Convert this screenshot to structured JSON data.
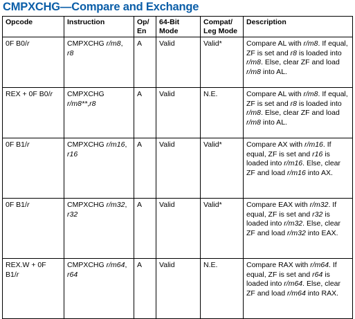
{
  "title": "CMPXCHG—Compare and Exchange",
  "headers": {
    "opcode": "Opcode",
    "instruction": "Instruction",
    "op_en_1": "Op/",
    "op_en_2": "En",
    "mode64_1": "64-Bit",
    "mode64_2": "Mode",
    "compat_1": "Compat/",
    "compat_2": "Leg Mode",
    "description": "Description"
  },
  "rows": [
    {
      "opcode_pre": "0F B0/",
      "opcode_it": "r",
      "opcode_post": "",
      "instr_pre": "CMPXCHG ",
      "instr_it1": "r/m8",
      "instr_mid": ", ",
      "instr_it2": "r8",
      "instr_post": "",
      "op_en": "A",
      "mode64": "Valid",
      "compat": "Valid*",
      "d1": "Compare AL with ",
      "d1i": "r/m8",
      "d2": ". If equal, ZF is set and ",
      "d2i": "r8",
      "d3": " is loaded into ",
      "d3i": "r/m8",
      "d4": ". Else, clear ZF and load ",
      "d4i": "r/m8",
      "d5": " into AL."
    },
    {
      "opcode_pre": "REX + 0F B0/",
      "opcode_it": "r",
      "opcode_post": "",
      "instr_pre": "CMPXCHG ",
      "instr_it1": "r/m8**",
      "instr_mid": ",",
      "instr_it2": "r8",
      "instr_post": "",
      "op_en": "A",
      "mode64": "Valid",
      "compat": "N.E.",
      "d1": "Compare AL with ",
      "d1i": "r/m8",
      "d2": ". If equal, ZF is set and ",
      "d2i": "r8",
      "d3": " is loaded into ",
      "d3i": "r/m8",
      "d4": ". Else, clear ZF and load ",
      "d4i": "r/m8",
      "d5": " into AL."
    },
    {
      "opcode_pre": "0F B1/",
      "opcode_it": "r",
      "opcode_post": "",
      "instr_pre": "CMPXCHG ",
      "instr_it1": "r/m16",
      "instr_mid": ", ",
      "instr_it2": "r16",
      "instr_post": "",
      "op_en": "A",
      "mode64": "Valid",
      "compat": "Valid*",
      "d1": "Compare AX with ",
      "d1i": "r/m16",
      "d2": ". If equal, ZF is set and ",
      "d2i": "r16",
      "d3": " is loaded into ",
      "d3i": "r/m16",
      "d4": ". Else, clear ZF and load ",
      "d4i": "r/m16",
      "d5": " into AX."
    },
    {
      "opcode_pre": "0F B1/",
      "opcode_it": "r",
      "opcode_post": "",
      "instr_pre": "CMPXCHG ",
      "instr_it1": "r/m32",
      "instr_mid": ", ",
      "instr_it2": "r32",
      "instr_post": "",
      "op_en": "A",
      "mode64": "Valid",
      "compat": "Valid*",
      "d1": "Compare EAX with ",
      "d1i": "r/m32",
      "d2": ". If equal, ZF is set and ",
      "d2i": "r32",
      "d3": " is loaded into ",
      "d3i": "r/m32",
      "d4": ". Else, clear ZF and load ",
      "d4i": "r/m32",
      "d5": " into EAX."
    },
    {
      "opcode_pre": "REX.W + 0F B1/",
      "opcode_it": "r",
      "opcode_post": "",
      "instr_pre": "CMPXCHG ",
      "instr_it1": "r/m64",
      "instr_mid": ", ",
      "instr_it2": "r64",
      "instr_post": "",
      "op_en": "A",
      "mode64": "Valid",
      "compat": "N.E.",
      "d1": "Compare RAX with ",
      "d1i": "r/m64",
      "d2": ". If equal, ZF is set and ",
      "d2i": "r64",
      "d3": " is loaded into ",
      "d3i": "r/m64",
      "d4": ". Else, clear ZF and load ",
      "d4i": "r/m64",
      "d5": " into RAX."
    }
  ]
}
